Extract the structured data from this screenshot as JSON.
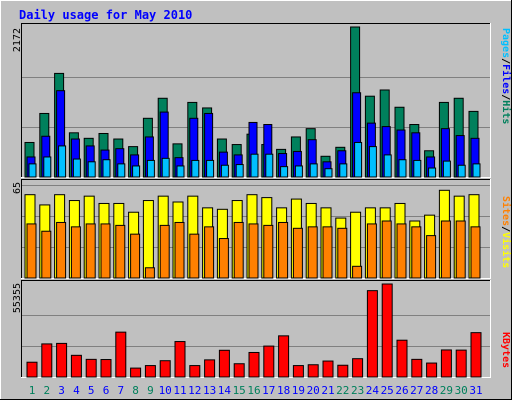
{
  "chart_data": {
    "type": "bar",
    "title": "Daily usage for May 2010",
    "categories": [
      "1",
      "2",
      "3",
      "4",
      "5",
      "6",
      "7",
      "8",
      "9",
      "10",
      "11",
      "12",
      "13",
      "14",
      "15",
      "16",
      "17",
      "18",
      "19",
      "20",
      "21",
      "22",
      "23",
      "24",
      "25",
      "26",
      "27",
      "28",
      "29",
      "30",
      "31"
    ],
    "weekend_days": [
      "1",
      "2",
      "8",
      "9",
      "15",
      "16",
      "22",
      "23",
      "29",
      "30"
    ],
    "panels": [
      {
        "id": "pages-files-hits",
        "max_label": "2172",
        "ylim": [
          0,
          2172
        ],
        "series": [
          {
            "name": "Hits",
            "color": "#00805c",
            "values": [
              500,
              920,
              1500,
              640,
              560,
              630,
              550,
              440,
              850,
              1140,
              480,
              1080,
              1000,
              550,
              470,
              620,
              470,
              400,
              580,
              700,
              300,
              430,
              2172,
              1170,
              1260,
              1010,
              760,
              380,
              1080,
              1140,
              950
            ]
          },
          {
            "name": "Files",
            "color": "#0000ff",
            "values": [
              290,
              590,
              1250,
              550,
              450,
              390,
              410,
              320,
              580,
              940,
              280,
              850,
              920,
              360,
              320,
              790,
              760,
              340,
              370,
              540,
              220,
              380,
              1220,
              780,
              730,
              680,
              640,
              290,
              700,
              600,
              560
            ]
          },
          {
            "name": "Pages",
            "color": "#00bfff",
            "values": [
              190,
              290,
              450,
              260,
              220,
              250,
              190,
              160,
              240,
              270,
              160,
              240,
              240,
              170,
              180,
              330,
              330,
              150,
              160,
              190,
              120,
              190,
              500,
              440,
              320,
              250,
              240,
              130,
              230,
              170,
              190
            ]
          }
        ],
        "legend": [
          "Pages",
          "Files",
          "Hits"
        ]
      },
      {
        "id": "sites-visits",
        "max_label": "65",
        "ylim": [
          0,
          65
        ],
        "series": [
          {
            "name": "Visits",
            "color": "#ffff00",
            "values": [
              57,
              50,
              57,
              53,
              56,
              51,
              51,
              45,
              53,
              56,
              52,
              56,
              48,
              47,
              53,
              57,
              55,
              48,
              54,
              51,
              48,
              41,
              45,
              48,
              48,
              51,
              39,
              43,
              60,
              56,
              57
            ]
          },
          {
            "name": "Sites",
            "color": "#ff8000",
            "values": [
              37,
              32,
              38,
              35,
              37,
              37,
              36,
              30,
              7,
              36,
              38,
              30,
              35,
              27,
              38,
              37,
              36,
              38,
              34,
              35,
              35,
              34,
              8,
              37,
              39,
              37,
              35,
              29,
              39,
              39,
              35
            ]
          }
        ],
        "legend": [
          "Sites",
          "Visits"
        ]
      },
      {
        "id": "kbytes",
        "max_label": "55355",
        "ylim": [
          0,
          55355
        ],
        "series": [
          {
            "name": "KBytes",
            "color": "#ff0000",
            "values": [
              8800,
              19700,
              20000,
              12900,
              10500,
              10400,
              26700,
              5300,
              6800,
              9700,
              21100,
              6800,
              10200,
              15900,
              7900,
              14600,
              18400,
              24500,
              6800,
              7300,
              9500,
              7000,
              10900,
              51400,
              55355,
              21900,
              10500,
              8300,
              16100,
              16000,
              26400
            ]
          }
        ],
        "legend": [
          "KBytes"
        ]
      }
    ],
    "colors": {
      "background": "#c0c0c0",
      "grid": "#808080",
      "frame_dark": "#808080",
      "frame_light": "#ffffff",
      "title": "#0000ff",
      "weekday_label": "#0000ff",
      "weekend_label": "#00805c",
      "slash": "#000000"
    }
  }
}
